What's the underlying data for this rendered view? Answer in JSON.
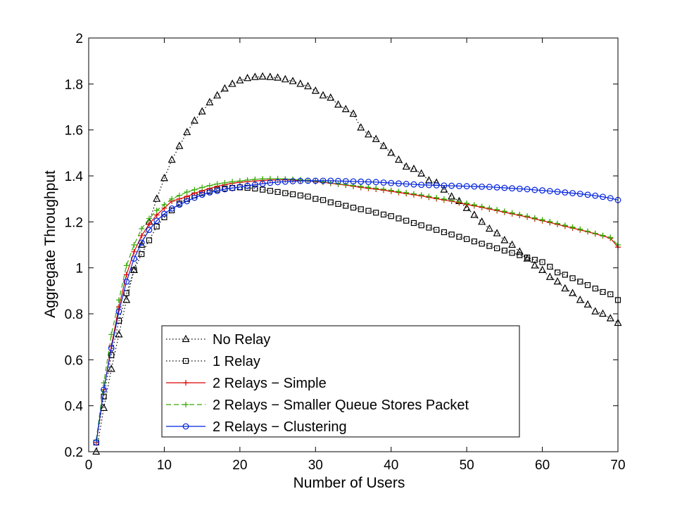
{
  "chart_data": {
    "type": "line",
    "title": "",
    "xlabel": "Number of Users",
    "ylabel": "Aggregate Throughput",
    "xlim": [
      0,
      70
    ],
    "ylim": [
      0.2,
      2
    ],
    "xticks": [
      0,
      10,
      20,
      30,
      40,
      50,
      60,
      70
    ],
    "xtick_labels": [
      "0",
      "10",
      "20",
      "30",
      "40",
      "50",
      "60",
      "70"
    ],
    "yticks": [
      0.2,
      0.4,
      0.6,
      0.8,
      1.0,
      1.2,
      1.4,
      1.6,
      1.8,
      2.0
    ],
    "ytick_labels": [
      "0.2",
      "0.4",
      "0.6",
      "0.8",
      "1",
      "1.2",
      "1.4",
      "1.6",
      "1.8",
      "2"
    ],
    "grid": false,
    "legend_position": "bottom-left",
    "x": [
      1,
      2,
      3,
      4,
      5,
      6,
      7,
      8,
      9,
      10,
      11,
      12,
      13,
      14,
      15,
      16,
      17,
      18,
      19,
      20,
      21,
      22,
      23,
      24,
      25,
      26,
      27,
      28,
      29,
      30,
      31,
      32,
      33,
      34,
      35,
      36,
      37,
      38,
      39,
      40,
      41,
      42,
      43,
      44,
      45,
      46,
      47,
      48,
      49,
      50,
      51,
      52,
      53,
      54,
      55,
      56,
      57,
      58,
      59,
      60,
      61,
      62,
      63,
      64,
      65,
      66,
      67,
      68,
      69,
      70
    ],
    "series": [
      {
        "name": "No Relay",
        "color": "#000000",
        "line": "dotted",
        "marker": "triangle",
        "values": [
          0.2,
          0.39,
          0.56,
          0.71,
          0.86,
          0.99,
          1.1,
          1.2,
          1.3,
          1.39,
          1.47,
          1.53,
          1.59,
          1.64,
          1.68,
          1.72,
          1.75,
          1.78,
          1.8,
          1.815,
          1.825,
          1.83,
          1.832,
          1.83,
          1.827,
          1.82,
          1.812,
          1.8,
          1.79,
          1.77,
          1.75,
          1.74,
          1.71,
          1.69,
          1.67,
          1.61,
          1.58,
          1.56,
          1.53,
          1.5,
          1.47,
          1.44,
          1.43,
          1.41,
          1.38,
          1.37,
          1.34,
          1.31,
          1.29,
          1.26,
          1.23,
          1.2,
          1.17,
          1.15,
          1.12,
          1.1,
          1.07,
          1.04,
          1.01,
          0.99,
          0.96,
          0.94,
          0.91,
          0.89,
          0.86,
          0.84,
          0.81,
          0.8,
          0.78,
          0.76
        ]
      },
      {
        "name": "1 Relay",
        "color": "#000000",
        "line": "dotted",
        "marker": "square",
        "values": [
          0.24,
          0.44,
          0.62,
          0.77,
          0.89,
          0.99,
          1.06,
          1.12,
          1.18,
          1.22,
          1.25,
          1.28,
          1.3,
          1.315,
          1.325,
          1.333,
          1.34,
          1.345,
          1.348,
          1.35,
          1.348,
          1.345,
          1.34,
          1.335,
          1.33,
          1.325,
          1.32,
          1.315,
          1.31,
          1.3,
          1.295,
          1.285,
          1.278,
          1.27,
          1.262,
          1.255,
          1.248,
          1.24,
          1.232,
          1.225,
          1.215,
          1.205,
          1.195,
          1.185,
          1.175,
          1.165,
          1.155,
          1.145,
          1.135,
          1.125,
          1.115,
          1.105,
          1.095,
          1.085,
          1.075,
          1.065,
          1.055,
          1.045,
          1.035,
          1.025,
          1.005,
          0.98,
          0.97,
          0.955,
          0.94,
          0.925,
          0.91,
          0.895,
          0.885,
          0.86
        ]
      },
      {
        "name": "2 Relays − Simple",
        "color": "#dd0000",
        "line": "solid",
        "marker": "plus",
        "values": [
          0.24,
          0.47,
          0.66,
          0.83,
          0.97,
          1.07,
          1.14,
          1.19,
          1.23,
          1.26,
          1.29,
          1.3,
          1.31,
          1.325,
          1.335,
          1.345,
          1.355,
          1.362,
          1.368,
          1.372,
          1.375,
          1.378,
          1.38,
          1.382,
          1.383,
          1.383,
          1.382,
          1.38,
          1.378,
          1.375,
          1.372,
          1.368,
          1.364,
          1.36,
          1.355,
          1.35,
          1.346,
          1.342,
          1.338,
          1.333,
          1.328,
          1.323,
          1.318,
          1.313,
          1.307,
          1.301,
          1.295,
          1.29,
          1.283,
          1.276,
          1.27,
          1.263,
          1.256,
          1.249,
          1.242,
          1.235,
          1.228,
          1.221,
          1.213,
          1.205,
          1.197,
          1.189,
          1.181,
          1.173,
          1.165,
          1.157,
          1.148,
          1.139,
          1.129,
          1.09
        ]
      },
      {
        "name": "2 Relays − Smaller Queue Stores Packet",
        "color": "#33aa00",
        "line": "dashed",
        "marker": "plus",
        "values": [
          0.25,
          0.5,
          0.71,
          0.86,
          1.01,
          1.1,
          1.17,
          1.215,
          1.25,
          1.275,
          1.3,
          1.315,
          1.33,
          1.34,
          1.35,
          1.358,
          1.365,
          1.37,
          1.375,
          1.378,
          1.382,
          1.385,
          1.387,
          1.388,
          1.388,
          1.387,
          1.385,
          1.383,
          1.38,
          1.377,
          1.374,
          1.37,
          1.366,
          1.362,
          1.358,
          1.354,
          1.35,
          1.346,
          1.342,
          1.337,
          1.332,
          1.327,
          1.322,
          1.317,
          1.311,
          1.305,
          1.299,
          1.293,
          1.287,
          1.281,
          1.274,
          1.267,
          1.26,
          1.253,
          1.246,
          1.239,
          1.232,
          1.225,
          1.217,
          1.209,
          1.201,
          1.193,
          1.185,
          1.177,
          1.168,
          1.159,
          1.15,
          1.141,
          1.132,
          1.1
        ]
      },
      {
        "name": "2 Relays − Clustering",
        "color": "#0022dd",
        "line": "solid",
        "marker": "circle",
        "values": [
          0.24,
          0.47,
          0.65,
          0.81,
          0.94,
          1.04,
          1.11,
          1.165,
          1.205,
          1.235,
          1.258,
          1.275,
          1.29,
          1.305,
          1.318,
          1.328,
          1.335,
          1.342,
          1.347,
          1.352,
          1.357,
          1.362,
          1.366,
          1.37,
          1.373,
          1.375,
          1.377,
          1.378,
          1.379,
          1.379,
          1.379,
          1.379,
          1.378,
          1.377,
          1.376,
          1.375,
          1.374,
          1.373,
          1.371,
          1.369,
          1.367,
          1.365,
          1.363,
          1.361,
          1.36,
          1.359,
          1.358,
          1.357,
          1.356,
          1.355,
          1.354,
          1.353,
          1.352,
          1.35,
          1.348,
          1.346,
          1.344,
          1.342,
          1.339,
          1.337,
          1.334,
          1.331,
          1.328,
          1.325,
          1.322,
          1.318,
          1.314,
          1.309,
          1.303,
          1.295
        ]
      }
    ]
  }
}
